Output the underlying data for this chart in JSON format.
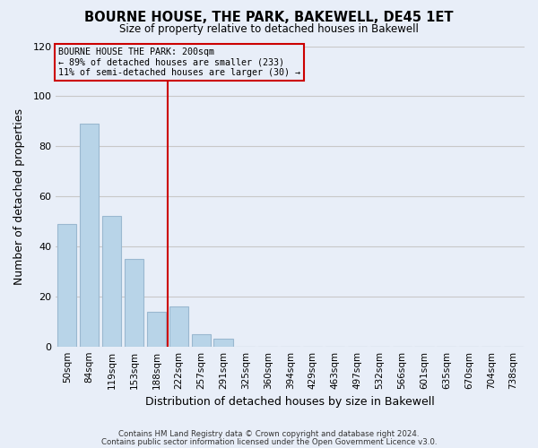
{
  "title": "BOURNE HOUSE, THE PARK, BAKEWELL, DE45 1ET",
  "subtitle": "Size of property relative to detached houses in Bakewell",
  "xlabel": "Distribution of detached houses by size in Bakewell",
  "ylabel": "Number of detached properties",
  "bar_labels": [
    "50sqm",
    "84sqm",
    "119sqm",
    "153sqm",
    "188sqm",
    "222sqm",
    "257sqm",
    "291sqm",
    "325sqm",
    "360sqm",
    "394sqm",
    "429sqm",
    "463sqm",
    "497sqm",
    "532sqm",
    "566sqm",
    "601sqm",
    "635sqm",
    "670sqm",
    "704sqm",
    "738sqm"
  ],
  "bar_values": [
    49,
    89,
    52,
    35,
    14,
    16,
    5,
    3,
    0,
    0,
    0,
    0,
    0,
    0,
    0,
    0,
    0,
    0,
    0,
    0,
    0
  ],
  "bar_color": "#b8d4e8",
  "bar_edge_color": "#9ab8d0",
  "annotation_box_text": "BOURNE HOUSE THE PARK: 200sqm\n← 89% of detached houses are smaller (233)\n11% of semi-detached houses are larger (30) →",
  "red_line_color": "#cc0000",
  "box_edge_color": "#cc0000",
  "ylim": [
    0,
    120
  ],
  "yticks": [
    0,
    20,
    40,
    60,
    80,
    100,
    120
  ],
  "footer_line1": "Contains HM Land Registry data © Crown copyright and database right 2024.",
  "footer_line2": "Contains public sector information licensed under the Open Government Licence v3.0.",
  "plot_bg_color": "#e8eef8",
  "fig_bg_color": "#e8eef8",
  "grid_color": "#c8c8c8",
  "figsize": [
    6.0,
    5.0
  ],
  "dpi": 100
}
